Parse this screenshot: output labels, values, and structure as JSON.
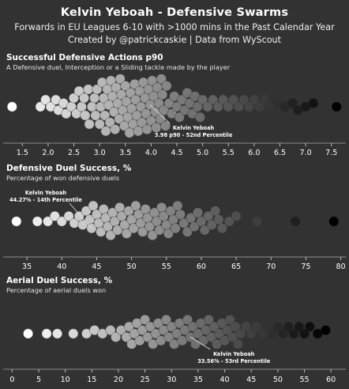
{
  "header": {
    "title": "Kelvin Yeboah - Defensive Swarms",
    "subtitle_1": "Forwards in EU Leagues 6-10 with >1000 mins in the Past Calendar Year",
    "subtitle_2": "Created by @patrickcaskie | Data from WyScout"
  },
  "chart_data": [
    {
      "type": "scatter",
      "style": "beeswarm",
      "title": "Successful Defensive Actions p90",
      "subtitle": "A Defensive duel, Interception or a Sliding tackle made by the player",
      "xlim": [
        1.25,
        7.75
      ],
      "ticks": [
        1.5,
        2.0,
        2.5,
        3.0,
        3.5,
        4.0,
        4.5,
        5.0,
        5.5,
        6.0,
        6.5,
        7.0,
        7.5
      ],
      "tick_labels": [
        "1.5",
        "2.0",
        "2.5",
        "3.0",
        "3.5",
        "4.0",
        "4.5",
        "5.0",
        "5.5",
        "6.0",
        "6.5",
        "7.0",
        "7.5"
      ],
      "color_scale": "white (low) to black (high)",
      "highlight": {
        "player": "Kelvin Yeboah",
        "value": 3.98,
        "label_line1": "Kelvin Yeboah",
        "label_line2": "3.98 p90 - 52nd Percentile",
        "label_side": "below-right"
      },
      "values": [
        1.3,
        1.85,
        1.95,
        2.05,
        2.15,
        2.2,
        2.3,
        2.35,
        2.45,
        2.5,
        2.55,
        2.6,
        2.65,
        2.7,
        2.72,
        2.78,
        2.8,
        2.85,
        2.9,
        2.92,
        2.95,
        3.0,
        3.02,
        3.05,
        3.08,
        3.1,
        3.12,
        3.15,
        3.18,
        3.2,
        3.22,
        3.25,
        3.28,
        3.3,
        3.32,
        3.35,
        3.38,
        3.4,
        3.42,
        3.45,
        3.48,
        3.5,
        3.52,
        3.55,
        3.58,
        3.6,
        3.62,
        3.65,
        3.68,
        3.7,
        3.72,
        3.75,
        3.78,
        3.8,
        3.82,
        3.85,
        3.88,
        3.9,
        3.92,
        3.95,
        3.98,
        4.0,
        4.02,
        4.05,
        4.08,
        4.1,
        4.12,
        4.15,
        4.18,
        4.2,
        4.22,
        4.25,
        4.28,
        4.3,
        4.35,
        4.4,
        4.45,
        4.5,
        4.55,
        4.6,
        4.65,
        4.7,
        4.75,
        4.8,
        4.85,
        4.9,
        4.95,
        5.0,
        5.1,
        5.2,
        5.3,
        5.4,
        5.5,
        5.6,
        5.7,
        5.8,
        5.9,
        6.0,
        6.1,
        6.2,
        6.3,
        6.45,
        6.6,
        6.75,
        6.85,
        7.0,
        7.15,
        7.6
      ]
    },
    {
      "type": "scatter",
      "style": "beeswarm",
      "title": "Defensive Duel Success, %",
      "subtitle": "Percentage of won defensive duels",
      "xlim": [
        32.5,
        80.5
      ],
      "ticks": [
        35,
        40,
        45,
        50,
        55,
        60,
        65,
        70,
        75,
        80
      ],
      "tick_labels": [
        "35",
        "40",
        "45",
        "50",
        "55",
        "60",
        "65",
        "70",
        "75",
        "80"
      ],
      "color_scale": "white (low) to black (high)",
      "highlight": {
        "player": "Kelvin Yeboah",
        "value": 44.27,
        "label_line1": "Kelvin Yeboah",
        "label_line2": "44.27% - 14th Percentile",
        "label_side": "above-left"
      },
      "values": [
        33.5,
        36.5,
        38.0,
        39.0,
        40.0,
        41.0,
        41.8,
        42.5,
        43.0,
        43.5,
        44.0,
        44.27,
        44.5,
        45.0,
        45.3,
        45.6,
        46.0,
        46.3,
        46.6,
        47.0,
        47.3,
        47.6,
        48.0,
        48.3,
        48.6,
        49.0,
        49.3,
        49.6,
        50.0,
        50.3,
        50.6,
        51.0,
        51.3,
        51.6,
        52.0,
        52.3,
        52.6,
        53.0,
        53.3,
        53.6,
        54.0,
        54.3,
        54.6,
        55.0,
        55.3,
        55.6,
        56.0,
        56.3,
        56.6,
        57.0,
        57.5,
        58.0,
        58.5,
        59.0,
        59.5,
        60.0,
        60.5,
        61.0,
        61.5,
        62.0,
        62.5,
        63.0,
        64.0,
        65.0,
        68.0,
        73.5,
        79.0
      ]
    },
    {
      "type": "scatter",
      "style": "beeswarm",
      "title": "Aerial Duel Success, %",
      "subtitle": "Percentage of aerial duels won",
      "xlim": [
        -0.5,
        62.5
      ],
      "ticks": [
        0,
        5,
        10,
        15,
        20,
        25,
        30,
        35,
        40,
        45,
        50,
        55,
        60
      ],
      "tick_labels": [
        "0",
        "5",
        "10",
        "15",
        "20",
        "25",
        "30",
        "35",
        "40",
        "45",
        "50",
        "55",
        "60"
      ],
      "color_scale": "white (low) to black (high)",
      "highlight": {
        "player": "Kelvin Yeboah",
        "value": 33.56,
        "label_line1": "Kelvin Yeboah",
        "label_line2": "33.56% - 53rd Percentile",
        "label_side": "below-right"
      },
      "values": [
        3.0,
        6.5,
        8.5,
        11.5,
        14.0,
        15.5,
        17.0,
        18.5,
        19.5,
        20.5,
        21.5,
        22.0,
        22.5,
        23.0,
        23.5,
        24.0,
        24.5,
        25.0,
        25.5,
        26.0,
        26.5,
        27.0,
        27.5,
        28.0,
        28.5,
        29.0,
        29.5,
        30.0,
        30.5,
        31.0,
        31.5,
        32.0,
        32.5,
        33.0,
        33.56,
        34.0,
        34.5,
        35.0,
        35.5,
        36.0,
        36.5,
        37.0,
        37.5,
        38.0,
        38.5,
        39.0,
        39.5,
        40.0,
        40.5,
        41.0,
        41.5,
        42.0,
        42.5,
        43.0,
        44.0,
        45.0,
        46.0,
        47.0,
        48.0,
        49.0,
        50.0,
        51.0,
        52.0,
        53.0,
        54.0,
        55.0,
        56.0,
        57.5,
        59.0
      ]
    }
  ]
}
